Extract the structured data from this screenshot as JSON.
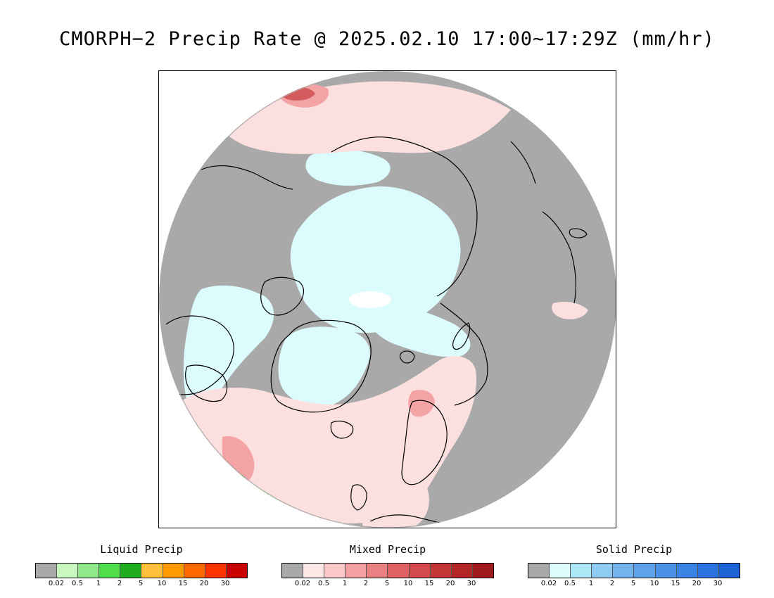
{
  "title": "CMORPH−2 Precip Rate @ 2025.02.10 17:00~17:29Z (mm/hr)",
  "map": {
    "projection": "north-polar-stereographic",
    "background_color": "#a9a9a9",
    "region_colors": {
      "no_precip": "#a9a9a9",
      "solid_light": "#dcfbfd",
      "mixed_light": "#fcdfdf",
      "mixed_medium": "#f4a3a5",
      "mixed_strong": "#d35b5d",
      "liquid_light": "#b2f7a8",
      "liquid_medium": "#4cd04a",
      "coastline": "#000000"
    }
  },
  "legends": [
    {
      "title": "Liquid Precip",
      "colors": [
        "#a9a9a9",
        "#c9f7c0",
        "#8fe98a",
        "#4fdd4c",
        "#1fad1f",
        "#ffbf3f",
        "#ff9a00",
        "#ff6a00",
        "#ff3300",
        "#c80000"
      ],
      "ticks": [
        "0.02",
        "0.5",
        "1",
        "2",
        "5",
        "10",
        "15",
        "20",
        "30"
      ]
    },
    {
      "title": "Mixed Precip",
      "colors": [
        "#a9a9a9",
        "#fde8e8",
        "#fbc9c9",
        "#f2a0a2",
        "#e98081",
        "#df6264",
        "#d24a4c",
        "#c23638",
        "#b22628",
        "#9e1b1d"
      ],
      "ticks": [
        "0.02",
        "0.5",
        "1",
        "2",
        "5",
        "10",
        "15",
        "20",
        "30"
      ]
    },
    {
      "title": "Solid Precip",
      "colors": [
        "#a9a9a9",
        "#e0fdfe",
        "#ade8f7",
        "#8fcbf3",
        "#74b4ee",
        "#5ea2eb",
        "#4a92e7",
        "#3a82e3",
        "#2b72dd",
        "#1e63d4"
      ],
      "ticks": [
        "0.02",
        "0.5",
        "1",
        "2",
        "5",
        "10",
        "15",
        "20",
        "30"
      ]
    }
  ]
}
